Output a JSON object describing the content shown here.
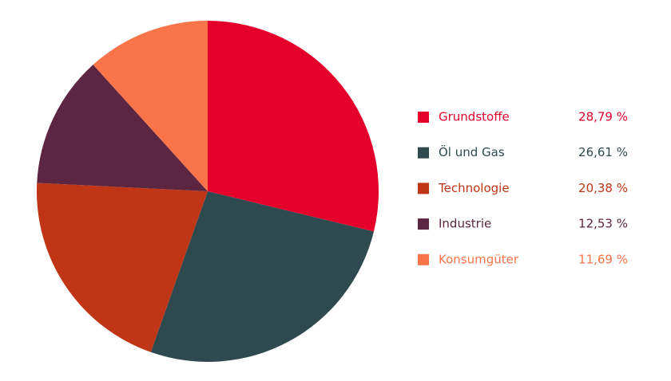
{
  "chart_data": {
    "type": "pie",
    "categories": [
      "Grundstoffe",
      "Öl und Gas",
      "Technologie",
      "Industrie",
      "Konsumgüter"
    ],
    "values": [
      28.79,
      26.61,
      20.38,
      12.53,
      11.69
    ],
    "value_labels": [
      "28,79 %",
      "26,61 %",
      "20,38 %",
      "12,53 %",
      "11,69 %"
    ],
    "colors": [
      "#e4002b",
      "#2f4a4f",
      "#c03515",
      "#5c2541",
      "#f97448"
    ],
    "legend": "right"
  }
}
